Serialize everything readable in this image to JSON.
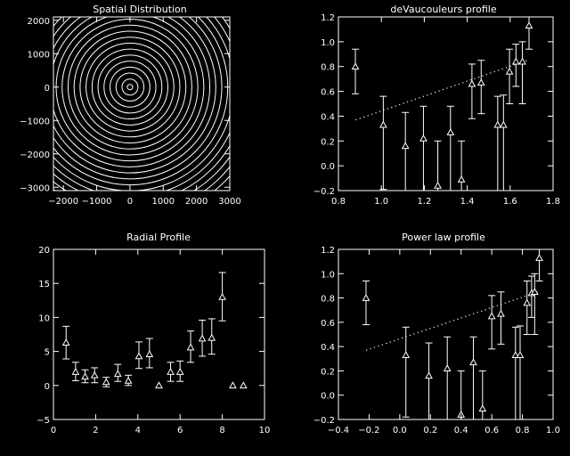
{
  "colors": {
    "background": "#000000",
    "foreground": "#ffffff"
  },
  "chart_data": [
    {
      "id": "spatial",
      "type": "contour",
      "title": "Spatial Distribution",
      "xlim": [
        -2300,
        3000
      ],
      "ylim": [
        -3100,
        2100
      ],
      "xticks": [
        -2000,
        -1000,
        0,
        1000,
        2000,
        3000
      ],
      "xtick_labels": [
        "−2000",
        "−1000",
        "0",
        "1000",
        "2000",
        "3000"
      ],
      "yticks": [
        -3000,
        -2000,
        -1000,
        0,
        1000,
        2000
      ],
      "ytick_labels": [
        "−3000",
        "−2000",
        "−1000",
        "0",
        "1000",
        "2000"
      ],
      "center": [
        0,
        0
      ],
      "radii": [
        80,
        240,
        420,
        600,
        780,
        960,
        1140,
        1320,
        1500,
        1680,
        1860,
        2040,
        2220,
        2400,
        2580,
        2760,
        2940,
        3120,
        3300,
        3480,
        3660,
        3840,
        4020
      ]
    },
    {
      "id": "devauc",
      "type": "scatter",
      "title": "deVaucouleurs profile",
      "xlim": [
        0.8,
        1.8
      ],
      "ylim": [
        -0.2,
        1.2
      ],
      "xticks": [
        0.8,
        1.0,
        1.2,
        1.4,
        1.6,
        1.8
      ],
      "xtick_labels": [
        "0.8",
        "1.0",
        "1.2",
        "1.4",
        "1.6",
        "1.8"
      ],
      "yticks": [
        -0.2,
        0.0,
        0.2,
        0.4,
        0.6,
        0.8,
        1.0,
        1.2
      ],
      "ytick_labels": [
        "−0.2",
        "0.0",
        "0.2",
        "0.4",
        "0.6",
        "0.8",
        "1.0",
        "1.2"
      ],
      "fit_line": {
        "x": [
          0.88,
          1.68
        ],
        "y": [
          0.37,
          0.85
        ]
      },
      "points": [
        {
          "x": 0.879,
          "y": 0.8,
          "low": 0.58,
          "high": 0.94
        },
        {
          "x": 1.009,
          "y": 0.33,
          "low": -0.19,
          "high": 0.56
        },
        {
          "x": 1.112,
          "y": 0.16,
          "low": -0.22,
          "high": 0.43
        },
        {
          "x": 1.196,
          "y": 0.22,
          "low": -0.22,
          "high": 0.48
        },
        {
          "x": 1.263,
          "y": -0.16,
          "low": -0.22,
          "high": 0.2
        },
        {
          "x": 1.322,
          "y": 0.27,
          "low": -0.22,
          "high": 0.48
        },
        {
          "x": 1.373,
          "y": -0.11,
          "low": -0.22,
          "high": 0.2
        },
        {
          "x": 1.422,
          "y": 0.66,
          "low": 0.38,
          "high": 0.82
        },
        {
          "x": 1.465,
          "y": 0.67,
          "low": 0.42,
          "high": 0.85
        },
        {
          "x": 1.542,
          "y": 0.33,
          "low": -0.22,
          "high": 0.56
        },
        {
          "x": 1.569,
          "y": 0.33,
          "low": -0.22,
          "high": 0.57
        },
        {
          "x": 1.597,
          "y": 0.76,
          "low": 0.5,
          "high": 0.94
        },
        {
          "x": 1.627,
          "y": 0.84,
          "low": 0.64,
          "high": 0.98
        },
        {
          "x": 1.657,
          "y": 0.84,
          "low": 0.5,
          "high": 1.0
        },
        {
          "x": 1.688,
          "y": 1.13,
          "low": 0.94,
          "high": 1.22
        }
      ]
    },
    {
      "id": "radial",
      "type": "scatter",
      "title": "Radial Profile",
      "xlim": [
        0,
        10
      ],
      "ylim": [
        -5,
        20
      ],
      "xticks": [
        0,
        2,
        4,
        6,
        8,
        10
      ],
      "xtick_labels": [
        "0",
        "2",
        "4",
        "6",
        "8",
        "10"
      ],
      "yticks": [
        -5,
        0,
        5,
        10,
        15,
        20
      ],
      "ytick_labels": [
        "−5",
        "0",
        "5",
        "10",
        "15",
        "20"
      ],
      "points": [
        {
          "x": 0.6,
          "y": 6.3,
          "low": 3.9,
          "high": 8.7
        },
        {
          "x": 1.05,
          "y": 2.0,
          "low": 0.7,
          "high": 3.4
        },
        {
          "x": 1.5,
          "y": 1.3,
          "low": 0.4,
          "high": 2.3
        },
        {
          "x": 1.95,
          "y": 1.5,
          "low": 0.4,
          "high": 2.6
        },
        {
          "x": 2.5,
          "y": 0.5,
          "low": -0.2,
          "high": 1.2
        },
        {
          "x": 3.05,
          "y": 1.7,
          "low": 0.6,
          "high": 3.1
        },
        {
          "x": 3.55,
          "y": 0.7,
          "low": 0.0,
          "high": 1.5
        },
        {
          "x": 4.05,
          "y": 4.3,
          "low": 2.5,
          "high": 6.4
        },
        {
          "x": 4.55,
          "y": 4.6,
          "low": 2.6,
          "high": 6.9
        },
        {
          "x": 5.0,
          "y": 0.0
        },
        {
          "x": 5.55,
          "y": 2.0,
          "low": 0.6,
          "high": 3.4
        },
        {
          "x": 6.0,
          "y": 2.0,
          "low": 0.6,
          "high": 3.6
        },
        {
          "x": 6.5,
          "y": 5.6,
          "low": 3.4,
          "high": 8.0
        },
        {
          "x": 7.05,
          "y": 6.9,
          "low": 4.3,
          "high": 9.6
        },
        {
          "x": 7.5,
          "y": 7.0,
          "low": 4.6,
          "high": 9.8
        },
        {
          "x": 8.0,
          "y": 13.0,
          "low": 9.5,
          "high": 16.6
        },
        {
          "x": 8.5,
          "y": 0.0
        },
        {
          "x": 9.0,
          "y": 0.0
        }
      ]
    },
    {
      "id": "powerlaw",
      "type": "scatter",
      "title": "Power law profile",
      "xlim": [
        -0.4,
        1.0
      ],
      "ylim": [
        -0.2,
        1.2
      ],
      "xticks": [
        -0.4,
        -0.2,
        0.0,
        0.2,
        0.4,
        0.6,
        0.8,
        1.0
      ],
      "xtick_labels": [
        "−0.4",
        "−0.2",
        "0.0",
        "0.2",
        "0.4",
        "0.6",
        "0.8",
        "1.0"
      ],
      "yticks": [
        -0.2,
        0.0,
        0.2,
        0.4,
        0.6,
        0.8,
        1.0,
        1.2
      ],
      "ytick_labels": [
        "−0.2",
        "0.0",
        "0.2",
        "0.4",
        "0.6",
        "0.8",
        "1.0",
        "1.2"
      ],
      "fit_line": {
        "x": [
          -0.22,
          0.9
        ],
        "y": [
          0.37,
          0.85
        ]
      },
      "points": [
        {
          "x": -0.22,
          "y": 0.8,
          "low": 0.58,
          "high": 0.94
        },
        {
          "x": 0.04,
          "y": 0.33,
          "low": -0.18,
          "high": 0.56
        },
        {
          "x": 0.19,
          "y": 0.16,
          "low": -0.22,
          "high": 0.43
        },
        {
          "x": 0.31,
          "y": 0.22,
          "low": -0.22,
          "high": 0.48
        },
        {
          "x": 0.4,
          "y": -0.16,
          "low": -0.22,
          "high": 0.2
        },
        {
          "x": 0.48,
          "y": 0.27,
          "low": -0.22,
          "high": 0.48
        },
        {
          "x": 0.54,
          "y": -0.11,
          "low": -0.22,
          "high": 0.2
        },
        {
          "x": 0.6,
          "y": 0.65,
          "low": 0.38,
          "high": 0.82
        },
        {
          "x": 0.66,
          "y": 0.67,
          "low": 0.42,
          "high": 0.85
        },
        {
          "x": 0.755,
          "y": 0.33,
          "low": -0.22,
          "high": 0.56
        },
        {
          "x": 0.785,
          "y": 0.33,
          "low": -0.22,
          "high": 0.57
        },
        {
          "x": 0.83,
          "y": 0.76,
          "low": 0.5,
          "high": 0.94
        },
        {
          "x": 0.86,
          "y": 0.84,
          "low": 0.64,
          "high": 0.98
        },
        {
          "x": 0.88,
          "y": 0.85,
          "low": 0.5,
          "high": 1.0
        },
        {
          "x": 0.91,
          "y": 1.13,
          "low": 0.94,
          "high": 1.22
        }
      ]
    }
  ]
}
